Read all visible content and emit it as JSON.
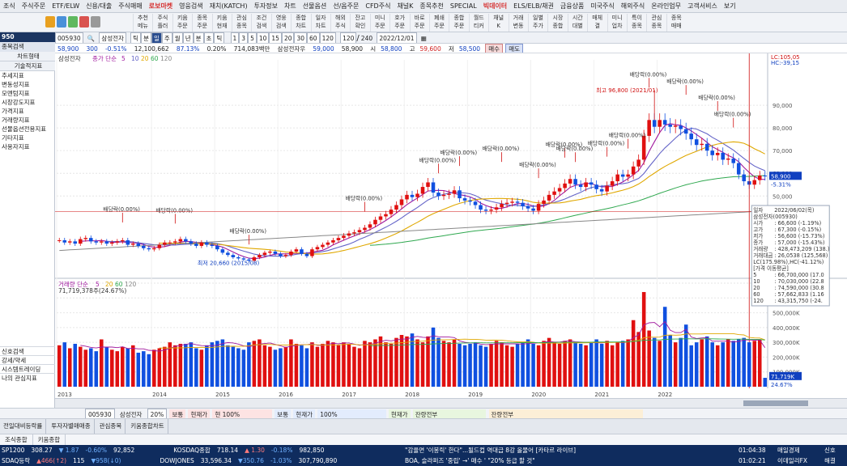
{
  "menu": [
    "조식",
    "주식주문",
    "ETF/ELW",
    "신용/대출",
    "주식매매",
    "로보마켓",
    "영웅검색",
    "재치(KATCH)",
    "투자정보",
    "차트",
    "선물옵션",
    "선/옵주문",
    "CFD주식",
    "채널K",
    "종목추천",
    "SPECIAL",
    "빅데이터",
    "ELS/ELB/채권",
    "금융상품",
    "미국주식",
    "해외주식",
    "온라인업무",
    "고객서비스",
    "보기"
  ],
  "menu_highlight": [
    "로보마켓",
    "빅데이터"
  ],
  "toolbar": [
    [
      "추천",
      "메뉴"
    ],
    [
      "주식",
      "플러"
    ],
    [
      "키움",
      "주문"
    ],
    [
      "종목",
      "주문"
    ],
    [
      "키움",
      "현재"
    ],
    [
      "관심",
      "종목"
    ],
    [
      "조건",
      "검색"
    ],
    [
      "영웅",
      "검색"
    ],
    [
      "종합",
      "차트"
    ],
    [
      "일자",
      "차트"
    ],
    [
      "해외",
      "주식"
    ],
    [
      "잔고",
      "확인"
    ],
    [
      "미니",
      "주문"
    ],
    [
      "호가",
      "주문"
    ],
    [
      "바로",
      "주문"
    ],
    [
      "폐쇄",
      "주문"
    ],
    [
      "종합",
      "주문"
    ],
    [
      "월드",
      "티커"
    ],
    [
      "채널",
      "K"
    ],
    [
      "거래",
      "변동"
    ],
    [
      "일별",
      "주가"
    ],
    [
      "시장",
      "종합"
    ],
    [
      "시간",
      "대별"
    ],
    [
      "매체",
      "결"
    ],
    [
      "미니",
      "업차"
    ],
    [
      "특이",
      "종목"
    ],
    [
      "관심",
      "종목"
    ],
    [
      "종목",
      "매매"
    ]
  ],
  "sidebar": {
    "window_code": "950",
    "header_button": "종목검색",
    "tabs": [
      "차트형태",
      "기술적지표"
    ],
    "items": [
      "추세지표",
      "변동성지표",
      "모멘텀지표",
      "시장강도지표",
      "가격지표",
      "거래량지표",
      "선물옵션전용지표",
      "기타지표",
      "사용자지표"
    ],
    "bottom_items": [
      "신호검색",
      "강세/약세",
      "시스템트레이딩",
      "나의 관심지표"
    ]
  },
  "chartbar": {
    "code": "005930",
    "name": "삼성전자",
    "periods": [
      "틱",
      "분",
      "일",
      "주",
      "월",
      "년",
      "분",
      "초",
      "틱"
    ],
    "intervals": [
      "1",
      "3",
      "5",
      "10",
      "15",
      "20",
      "30",
      "60",
      "120"
    ],
    "count": "120",
    "total": "240",
    "date": "2022/12/01"
  },
  "quote": {
    "price": "58,900",
    "change": "300",
    "change_pct": "-0.51%",
    "volume": "12,100,662",
    "turnover_pct": "87.13%",
    "pct2": "0.20%",
    "amount": "714,083백만",
    "pref_label": "삼성전자우",
    "pref_price": "59,000",
    "q1": "58,900",
    "si_label": "시",
    "si": "58,800",
    "go_label": "고",
    "go": "59,600",
    "jeo_label": "저",
    "jeo": "58,500",
    "buy": "매수",
    "sell": "매도"
  },
  "chart_data": {
    "type": "candlestick",
    "title": "삼성전자",
    "ma_legend": {
      "label": "종가 단순",
      "periods": [
        5,
        10,
        20,
        60,
        120
      ],
      "colors": [
        "#a0199e",
        "#6464c8",
        "#e0a800",
        "#2fa84f",
        "#888888"
      ]
    },
    "years": [
      "2013",
      "2014",
      "2015",
      "2016",
      "2017",
      "2018",
      "2019",
      "2020",
      "2021",
      "2022"
    ],
    "y_ticks": [
      90000,
      80000,
      70000,
      60000,
      50000
    ],
    "y_tick_labels": [
      "90,000",
      "80,000",
      "70,000",
      "60,000",
      "50,000"
    ],
    "ylim": [
      18000,
      110000
    ],
    "max_annotation": "최고 96,800 (2021/01)",
    "min_annotation": "최저 20,660 (2015/08)",
    "last_price_label": "58,900",
    "last_pct_label": "-5.31%",
    "right_box_label": "43,142",
    "lc_label": "LC:105,05",
    "hc_label": "HC:-39,15",
    "dividend_label": "배당락(0.00%)",
    "monthly_close": [
      30500,
      29500,
      30000,
      29000,
      31000,
      31500,
      30000,
      29500,
      30000,
      29000,
      29500,
      30000,
      30500,
      28500,
      29000,
      28000,
      27000,
      26500,
      27000,
      28500,
      29500,
      29500,
      30000,
      31000,
      30000,
      29000,
      28000,
      29500,
      28500,
      28000,
      26500,
      25000,
      24000,
      23000,
      22500,
      22000,
      21500,
      23000,
      24000,
      25000,
      25500,
      24500,
      23500,
      24000,
      25500,
      26500,
      24500,
      23500,
      26500,
      27500,
      28500,
      29500,
      30500,
      31500,
      32500,
      33500,
      34000,
      35000,
      36000,
      37500,
      39500,
      41000,
      42000,
      44000,
      46000,
      48500,
      50500,
      49500,
      51000,
      54000,
      56000,
      51500,
      50000,
      50500,
      51000,
      52500,
      49000,
      48000,
      47500,
      46000,
      44000,
      43500,
      44000,
      45000,
      46500,
      47000,
      47500,
      47000,
      45500,
      44500,
      43500,
      46500,
      48000,
      50500,
      52000,
      53500,
      55500,
      57500,
      55000,
      54000,
      56000,
      55000,
      53000,
      52000,
      54500,
      56500,
      59500,
      58500,
      59500,
      63000,
      66000,
      76500,
      83500,
      80500,
      83500,
      81500,
      80500,
      81000,
      79500,
      77500,
      75000,
      72500,
      73000,
      70000,
      68000,
      69000,
      66000,
      66500,
      64500,
      59500,
      56500,
      55000,
      57000,
      59000,
      58900
    ],
    "volume_label": "거래량 단순",
    "volume_ma_periods": [
      5,
      20,
      60,
      120
    ],
    "volume_value": "71,719,378주(24.67%)",
    "volume_ticks": [
      700000000,
      600000000,
      500000000,
      400000000,
      300000000,
      200000000,
      100000000
    ],
    "volume_tick_labels": [
      "700,000K",
      "600,000K",
      "500,000K",
      "400,000K",
      "300,000K",
      "200,000K",
      "100,000K"
    ],
    "volume_last_label": "71,719K",
    "volume_last_pct": "24.67%",
    "volumes": [
      280,
      300,
      260,
      290,
      270,
      250,
      260,
      240,
      320,
      270,
      250,
      240,
      270,
      260,
      280,
      230,
      240,
      220,
      250,
      260,
      270,
      300,
      280,
      290,
      290,
      300,
      260,
      250,
      280,
      300,
      310,
      320,
      280,
      270,
      260,
      250,
      300,
      310,
      320,
      280,
      270,
      250,
      260,
      270,
      320,
      290,
      280,
      260,
      300,
      270,
      290,
      310,
      300,
      280,
      300,
      290,
      270,
      260,
      310,
      300,
      320,
      340,
      300,
      290,
      330,
      350,
      340,
      360,
      320,
      300,
      340,
      400,
      330,
      310,
      300,
      320,
      290,
      280,
      290,
      300,
      280,
      270,
      290,
      310,
      300,
      280,
      270,
      290,
      300,
      320,
      290,
      280,
      310,
      330,
      300,
      290,
      310,
      320,
      300,
      290,
      280,
      300,
      320,
      290,
      310,
      280,
      300,
      310,
      320,
      450,
      370,
      640,
      380,
      330,
      310,
      540,
      350,
      300,
      330,
      420,
      280,
      300,
      320,
      340,
      300,
      280,
      300,
      320,
      310,
      320,
      330,
      300,
      310,
      320,
      60
    ]
  },
  "info_panel": {
    "rows": [
      [
        "일자",
        "2022/06/02(목)"
      ],
      [
        "삼성전자(005930)",
        ""
      ],
      [
        "시가",
        ": 66,600 (-1.19%)"
      ],
      [
        "고가",
        ": 67,300 (-0.15%)"
      ],
      [
        "저가",
        ": 56,600 (-15.73%)"
      ],
      [
        "종가",
        ": 57,000 (-15.43%)"
      ],
      [
        "거래량",
        ": 428,473,209 (138.)"
      ],
      [
        "거래대금",
        ": 26,0538 (125,568)"
      ],
      [
        "LC(175.98%),HC(-41.12%)",
        ""
      ],
      [
        "[가격 이동평균]",
        ""
      ],
      [
        "5",
        ": 66,700,000 (17.0"
      ],
      [
        "10",
        ": 70,030,000 (22.8"
      ],
      [
        "20",
        ": 74,590,000 (30.8"
      ],
      [
        "60",
        ": 57,662,833 (1.16"
      ],
      [
        "120",
        ": 43,315,750 (-24."
      ]
    ]
  },
  "bottom": {
    "code": "005930",
    "name": "삼성전자",
    "pct": "20%",
    "box1_label": "보통",
    "box1_status": "현재가",
    "box1_status2": "현 100%",
    "box2_label": "보통",
    "box2_status": "현재가",
    "box2_pct": "100%",
    "box3_label": "현재가",
    "box3_status": "잔량전부",
    "box4": "잔량전부"
  },
  "windows": [
    "전일대비등락률",
    "투자자별매매종",
    "관심종목",
    "키움종합차트"
  ],
  "tabs": [
    "조식종합",
    "키움종합"
  ],
  "ticker": {
    "row1": [
      [
        "SP1200",
        "308.27",
        "▼ 1.87",
        "-0.60%",
        "92,852"
      ],
      [
        "KOSDAQ종합",
        "718.14",
        "▲ 1.30",
        "-0.18%",
        "982,850"
      ]
    ],
    "row2": [
      [
        "SDAQ등락",
        "▲466(↑2)",
        "115",
        "▼958(↓0)"
      ],
      [
        "DOWJONES",
        "33,596.34",
        "▼350.76",
        "-1.03%",
        "307,790,890"
      ]
    ],
    "news1": "\"감율면 '이봉릭' 한다\"...될드컵 역대급 8강 올물어 [카타르 라이브]",
    "news2": "BOA, 슬라퍼즈 '중립' →' 매수 ' \"20% 등급 할 것\"",
    "time1": "01:04:38",
    "src1": "매일경제",
    "time2": "01:02:21",
    "src2": "이데일리FX",
    "right1": "신호",
    "right2": "해결"
  }
}
